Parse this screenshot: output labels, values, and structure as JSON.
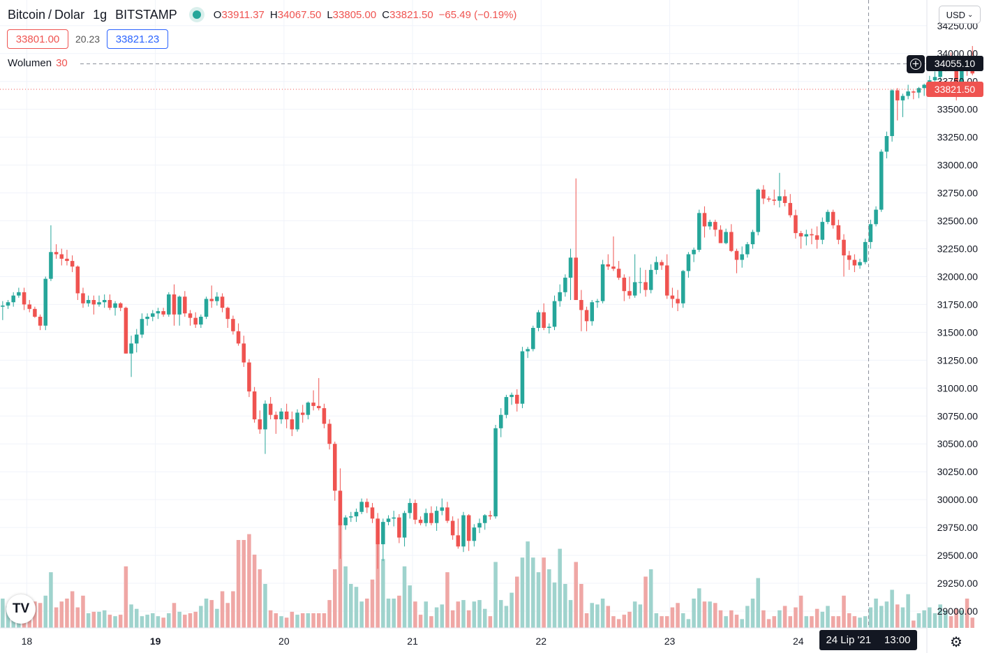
{
  "header": {
    "symbol": "Bitcoin",
    "quote": "Dolar",
    "interval": "1g",
    "exchange": "BITSTAMP",
    "ohlc": {
      "o_label": "O",
      "o": "33911.37",
      "h_label": "H",
      "h": "34067.50",
      "l_label": "L",
      "l": "33805.00",
      "c_label": "C",
      "c": "33821.50",
      "change": "−65.49 (−0.19%)"
    }
  },
  "bid": "33801.00",
  "spread": "20.23",
  "ask": "33821.23",
  "volume_label": "Wolumen",
  "volume_value": "30",
  "currency_button": "USD",
  "crosshair_price": "34055.10",
  "last_price": "33821.50",
  "time_tag": {
    "date": "24 Lip '21",
    "time": "13:00"
  },
  "logo": "TV",
  "icons": {
    "settings": "gear-icon",
    "add": "plus-circle-icon",
    "currency_caret": "chevron-down-icon"
  },
  "colors": {
    "up": "#26a69a",
    "down": "#ef5350",
    "volume_up": "#9fd3cd",
    "volume_down": "#efa7a5",
    "last_price": "#ef5350",
    "crosshair": "#131722"
  },
  "chart_data": {
    "type": "candlestick",
    "x_tick_labels": [
      "18",
      "19",
      "20",
      "21",
      "22",
      "23",
      "24"
    ],
    "x_tick_hours": [
      0,
      24,
      48,
      72,
      96,
      120,
      144
    ],
    "y_tick_labels": [
      "29000.00",
      "29250.00",
      "29500.00",
      "29750.00",
      "30000.00",
      "30250.00",
      "30500.00",
      "30750.00",
      "31000.00",
      "31250.00",
      "31500.00",
      "31750.00",
      "32000.00",
      "32250.00",
      "32500.00",
      "32750.00",
      "33000.00",
      "33250.00",
      "33500.00",
      "33750.00",
      "34000.00",
      "34250.00"
    ],
    "ylim": [
      28850,
      34480
    ],
    "xlim_hours": [
      -5,
      168
    ],
    "candle_hours_start": -5,
    "volume_max": 100,
    "candles": [
      [
        31730,
        31780,
        31610,
        31740,
        20
      ],
      [
        31740,
        31790,
        31710,
        31770,
        15
      ],
      [
        31770,
        31860,
        31730,
        31830,
        15
      ],
      [
        31830,
        31900,
        31810,
        31860,
        22
      ],
      [
        31860,
        31900,
        31700,
        31750,
        13
      ],
      [
        31750,
        31790,
        31680,
        31710,
        17
      ],
      [
        31710,
        31730,
        31630,
        31640,
        18
      ],
      [
        31640,
        31660,
        31520,
        31560,
        17
      ],
      [
        31560,
        32000,
        31520,
        31980,
        22
      ],
      [
        31980,
        32460,
        31960,
        32220,
        38
      ],
      [
        32220,
        32290,
        32160,
        32200,
        14
      ],
      [
        32200,
        32250,
        32100,
        32160,
        18
      ],
      [
        32160,
        32240,
        32100,
        32140,
        20
      ],
      [
        32140,
        32190,
        32040,
        32090,
        25
      ],
      [
        32090,
        32100,
        31790,
        31850,
        14
      ],
      [
        31850,
        31900,
        31720,
        31760,
        22
      ],
      [
        31760,
        31830,
        31730,
        31790,
        10
      ],
      [
        31790,
        31830,
        31660,
        31750,
        11
      ],
      [
        31750,
        31830,
        31730,
        31770,
        11
      ],
      [
        31770,
        31840,
        31720,
        31790,
        12
      ],
      [
        31790,
        31840,
        31700,
        31720,
        9
      ],
      [
        31720,
        31780,
        31650,
        31760,
        8
      ],
      [
        31760,
        31770,
        31690,
        31720,
        9
      ],
      [
        31720,
        31730,
        31310,
        31310,
        42
      ],
      [
        31310,
        31470,
        31100,
        31400,
        16
      ],
      [
        31400,
        31530,
        31320,
        31480,
        13
      ],
      [
        31480,
        31670,
        31450,
        31620,
        8
      ],
      [
        31620,
        31670,
        31560,
        31640,
        9
      ],
      [
        31640,
        31700,
        31600,
        31670,
        10
      ],
      [
        31670,
        31720,
        31620,
        31690,
        8
      ],
      [
        31690,
        31720,
        31640,
        31660,
        7
      ],
      [
        31660,
        31860,
        31640,
        31840,
        10
      ],
      [
        31840,
        31930,
        31560,
        31660,
        17
      ],
      [
        31660,
        31830,
        31560,
        31820,
        11
      ],
      [
        31820,
        31870,
        31640,
        31670,
        9
      ],
      [
        31670,
        31700,
        31560,
        31630,
        10
      ],
      [
        31630,
        31680,
        31540,
        31570,
        11
      ],
      [
        31570,
        31660,
        31540,
        31640,
        15
      ],
      [
        31640,
        31820,
        31620,
        31800,
        20
      ],
      [
        31800,
        31920,
        31720,
        31780,
        19
      ],
      [
        31780,
        31860,
        31740,
        31820,
        13
      ],
      [
        31820,
        31850,
        31680,
        31720,
        25
      ],
      [
        31720,
        31730,
        31540,
        31620,
        17
      ],
      [
        31620,
        31650,
        31480,
        31510,
        25
      ],
      [
        31510,
        31580,
        31380,
        31400,
        60
      ],
      [
        31400,
        31470,
        31190,
        31230,
        60
      ],
      [
        31230,
        31260,
        30920,
        30970,
        64
      ],
      [
        30970,
        31010,
        30690,
        30720,
        50
      ],
      [
        30720,
        30800,
        30590,
        30630,
        40
      ],
      [
        30630,
        30890,
        30410,
        30860,
        30
      ],
      [
        30860,
        30920,
        30720,
        30760,
        12
      ],
      [
        30760,
        30790,
        30590,
        30720,
        10
      ],
      [
        30720,
        30820,
        30680,
        30790,
        8
      ],
      [
        30790,
        30860,
        30640,
        30720,
        7
      ],
      [
        30720,
        30790,
        30570,
        30630,
        11
      ],
      [
        30630,
        30810,
        30610,
        30780,
        9
      ],
      [
        30780,
        30850,
        30690,
        30760,
        10
      ],
      [
        30760,
        30880,
        30720,
        30870,
        10
      ],
      [
        30870,
        30980,
        30800,
        30840,
        10
      ],
      [
        30840,
        31090,
        30800,
        30820,
        10
      ],
      [
        30820,
        30860,
        30640,
        30680,
        10
      ],
      [
        30680,
        30720,
        30450,
        30500,
        19
      ],
      [
        30500,
        30520,
        29990,
        30080,
        40
      ],
      [
        30080,
        30280,
        29470,
        29770,
        72
      ],
      [
        29770,
        29860,
        29730,
        29840,
        42
      ],
      [
        29840,
        29890,
        29800,
        29850,
        30
      ],
      [
        29850,
        29920,
        29800,
        29890,
        28
      ],
      [
        29890,
        30010,
        29870,
        29980,
        18
      ],
      [
        29980,
        30010,
        29880,
        29930,
        20
      ],
      [
        29930,
        29970,
        29790,
        29830,
        33
      ],
      [
        29830,
        29880,
        29380,
        29600,
        60
      ],
      [
        29600,
        29830,
        29450,
        29800,
        47
      ],
      [
        29800,
        29860,
        29770,
        29830,
        20
      ],
      [
        29830,
        29900,
        29760,
        29840,
        20
      ],
      [
        29840,
        29870,
        29610,
        29660,
        22
      ],
      [
        29660,
        29900,
        29580,
        29880,
        42
      ],
      [
        29880,
        30010,
        29830,
        29970,
        29
      ],
      [
        29970,
        30000,
        29780,
        29820,
        18
      ],
      [
        29820,
        29850,
        29770,
        29790,
        9
      ],
      [
        29790,
        29920,
        29760,
        29880,
        18
      ],
      [
        29880,
        29940,
        29770,
        29790,
        8
      ],
      [
        29790,
        29940,
        29720,
        29900,
        14
      ],
      [
        29900,
        30010,
        29860,
        29930,
        16
      ],
      [
        29930,
        29980,
        29790,
        29810,
        38
      ],
      [
        29810,
        29850,
        29640,
        29680,
        12
      ],
      [
        29680,
        29830,
        29560,
        29580,
        18
      ],
      [
        29580,
        29890,
        29530,
        29860,
        19
      ],
      [
        29860,
        29870,
        29540,
        29630,
        12
      ],
      [
        29630,
        29780,
        29580,
        29750,
        18
      ],
      [
        29750,
        29830,
        29700,
        29790,
        19
      ],
      [
        29790,
        29870,
        29730,
        29860,
        13
      ],
      [
        29860,
        29900,
        29820,
        29850,
        8
      ],
      [
        29850,
        30670,
        29830,
        30640,
        45
      ],
      [
        30640,
        30820,
        30560,
        30760,
        19
      ],
      [
        30760,
        30940,
        30730,
        30920,
        15
      ],
      [
        30920,
        30960,
        30850,
        30940,
        24
      ],
      [
        30940,
        30990,
        30790,
        30860,
        35
      ],
      [
        30860,
        31370,
        30820,
        31330,
        48
      ],
      [
        31330,
        31370,
        31270,
        31350,
        59
      ],
      [
        31350,
        31560,
        31330,
        31540,
        48
      ],
      [
        31540,
        31700,
        31510,
        31680,
        38
      ],
      [
        31680,
        31760,
        31520,
        31540,
        48
      ],
      [
        31540,
        31580,
        31490,
        31550,
        40
      ],
      [
        31550,
        31830,
        31520,
        31780,
        31
      ],
      [
        31780,
        31930,
        31730,
        31860,
        54
      ],
      [
        31860,
        32020,
        31820,
        31990,
        30
      ],
      [
        31990,
        32250,
        31790,
        32170,
        19
      ],
      [
        32170,
        32880,
        31800,
        31790,
        45
      ],
      [
        31790,
        31880,
        31510,
        31700,
        30
      ],
      [
        31700,
        31730,
        31510,
        31600,
        10
      ],
      [
        31600,
        31790,
        31560,
        31770,
        17
      ],
      [
        31770,
        31800,
        31720,
        31780,
        16
      ],
      [
        31780,
        32150,
        31760,
        32110,
        20
      ],
      [
        32110,
        32200,
        32060,
        32090,
        15
      ],
      [
        32090,
        32360,
        32050,
        32070,
        8
      ],
      [
        32070,
        32140,
        31970,
        31990,
        6
      ],
      [
        31990,
        32020,
        31780,
        31870,
        9
      ],
      [
        31870,
        32000,
        31800,
        31830,
        11
      ],
      [
        31830,
        32200,
        31810,
        31950,
        18
      ],
      [
        31950,
        32080,
        31850,
        31950,
        16
      ],
      [
        31950,
        32060,
        31820,
        31880,
        35
      ],
      [
        31880,
        32110,
        31850,
        32060,
        40
      ],
      [
        32060,
        32180,
        32020,
        32130,
        10
      ],
      [
        32130,
        32150,
        32060,
        32100,
        8
      ],
      [
        32100,
        32200,
        31800,
        31830,
        8
      ],
      [
        31830,
        31900,
        31720,
        31800,
        14
      ],
      [
        31800,
        31880,
        31690,
        31760,
        17
      ],
      [
        31760,
        32060,
        31720,
        32050,
        10
      ],
      [
        32050,
        32220,
        31990,
        32200,
        6
      ],
      [
        32200,
        32260,
        32130,
        32240,
        20
      ],
      [
        32240,
        32600,
        32220,
        32570,
        27
      ],
      [
        32570,
        32630,
        32350,
        32450,
        18
      ],
      [
        32450,
        32510,
        32420,
        32490,
        18
      ],
      [
        32490,
        32510,
        32360,
        32420,
        17
      ],
      [
        32420,
        32460,
        32300,
        32300,
        12
      ],
      [
        32300,
        32430,
        32290,
        32400,
        8
      ],
      [
        32400,
        32470,
        32220,
        32230,
        12
      ],
      [
        32230,
        32250,
        32030,
        32150,
        9
      ],
      [
        32150,
        32270,
        32080,
        32200,
        6
      ],
      [
        32200,
        32310,
        32170,
        32290,
        15
      ],
      [
        32290,
        32420,
        32250,
        32400,
        20
      ],
      [
        32400,
        32790,
        32370,
        32780,
        34
      ],
      [
        32780,
        32820,
        32650,
        32700,
        12
      ],
      [
        32700,
        32720,
        32670,
        32690,
        6
      ],
      [
        32690,
        32780,
        32640,
        32680,
        8
      ],
      [
        32680,
        32930,
        32620,
        32720,
        12
      ],
      [
        32720,
        32780,
        32630,
        32660,
        15
      ],
      [
        32660,
        32740,
        32530,
        32550,
        8
      ],
      [
        32550,
        32600,
        32340,
        32390,
        14
      ],
      [
        32390,
        32410,
        32250,
        32360,
        22
      ],
      [
        32360,
        32420,
        32280,
        32380,
        8
      ],
      [
        32380,
        32430,
        32290,
        32370,
        8
      ],
      [
        32370,
        32450,
        32250,
        32330,
        13
      ],
      [
        32330,
        32530,
        32290,
        32490,
        11
      ],
      [
        32490,
        32600,
        32470,
        32580,
        15
      ],
      [
        32580,
        32600,
        32430,
        32460,
        8
      ],
      [
        32460,
        32510,
        32290,
        32330,
        8
      ],
      [
        32330,
        32380,
        32000,
        32190,
        22
      ],
      [
        32190,
        32230,
        32060,
        32150,
        10
      ],
      [
        32150,
        32200,
        32040,
        32100,
        8
      ],
      [
        32100,
        32160,
        32070,
        32130,
        7
      ],
      [
        32130,
        32340,
        32110,
        32310,
        8
      ],
      [
        32310,
        32510,
        32250,
        32470,
        14
      ],
      [
        32470,
        32630,
        32450,
        32600,
        20
      ],
      [
        32600,
        33140,
        32580,
        33120,
        15
      ],
      [
        33120,
        33300,
        33060,
        33260,
        18
      ],
      [
        33260,
        33680,
        33210,
        33670,
        26
      ],
      [
        33670,
        33690,
        33400,
        33580,
        16
      ],
      [
        33580,
        33640,
        33430,
        33620,
        14
      ],
      [
        33620,
        33720,
        33590,
        33660,
        23
      ],
      [
        33660,
        33670,
        33590,
        33650,
        5
      ],
      [
        33650,
        33700,
        33600,
        33690,
        10
      ],
      [
        33690,
        33730,
        33620,
        33720,
        12
      ],
      [
        33720,
        33800,
        33680,
        33760,
        14
      ],
      [
        33760,
        33840,
        33700,
        33790,
        10
      ],
      [
        33790,
        33890,
        33760,
        33880,
        16
      ],
      [
        33880,
        33950,
        33840,
        33930,
        12
      ],
      [
        33930,
        34010,
        33850,
        33860,
        8
      ],
      [
        33860,
        33880,
        33580,
        33640,
        13
      ],
      [
        33640,
        33920,
        33620,
        33910,
        12
      ],
      [
        33910,
        33930,
        33800,
        33880,
        20
      ],
      [
        33911.37,
        34067.5,
        33805,
        33821.5,
        7
      ]
    ]
  }
}
